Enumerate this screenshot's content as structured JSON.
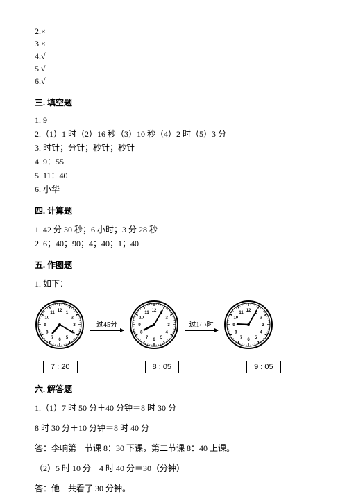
{
  "judgement": {
    "items": [
      {
        "num": "2.",
        "mark": "×"
      },
      {
        "num": "3.",
        "mark": "×"
      },
      {
        "num": "4.",
        "mark": "√"
      },
      {
        "num": "5.",
        "mark": "√"
      },
      {
        "num": "6.",
        "mark": "√"
      }
    ]
  },
  "section3": {
    "title": "三. 填空题",
    "lines": [
      "1. 9",
      "2.（1）1 时（2）16 秒（3）10 秒（4）2 时（5）3 分",
      "3. 时针；分针；秒针；秒针",
      "4. 9：55",
      "5. 11：40",
      "6. 小华"
    ]
  },
  "section4": {
    "title": "四. 计算题",
    "lines": [
      "1. 42 分 30 秒；6 小时；3 分 28 秒",
      "2. 6；40；90；4；40；1；40"
    ]
  },
  "section5": {
    "title": "五. 作图题",
    "line1": "1. 如下：",
    "clocks": [
      {
        "hour": 7,
        "minute": 20,
        "label": "7 : 20"
      },
      {
        "hour": 8,
        "minute": 5,
        "label": "8 : 05"
      },
      {
        "hour": 9,
        "minute": 5,
        "label": "9 : 05"
      }
    ],
    "arrows": [
      {
        "label": "过45分"
      },
      {
        "label": "过1小时"
      }
    ],
    "clock_style": {
      "radius": 34,
      "stroke": "#000",
      "stroke_width": 2,
      "face_fill": "#ffffff",
      "number_fontsize": 6,
      "hour_hand_len": 16,
      "minute_hand_len": 24,
      "hand_stroke": "#000"
    }
  },
  "section6": {
    "title": "六. 解答题",
    "lines": [
      "1.（1）7 时 50 分＋40 分钟＝8 时 30 分",
      "8 时 30 分＋10 分钟＝8 时 40 分",
      "答：李响第一节课 8：30 下课，第二节课 8：40 上课。",
      "（2）5 时 10 分－4 时 40 分＝30（分钟）",
      "答：他一共看了 30 分钟。"
    ]
  }
}
